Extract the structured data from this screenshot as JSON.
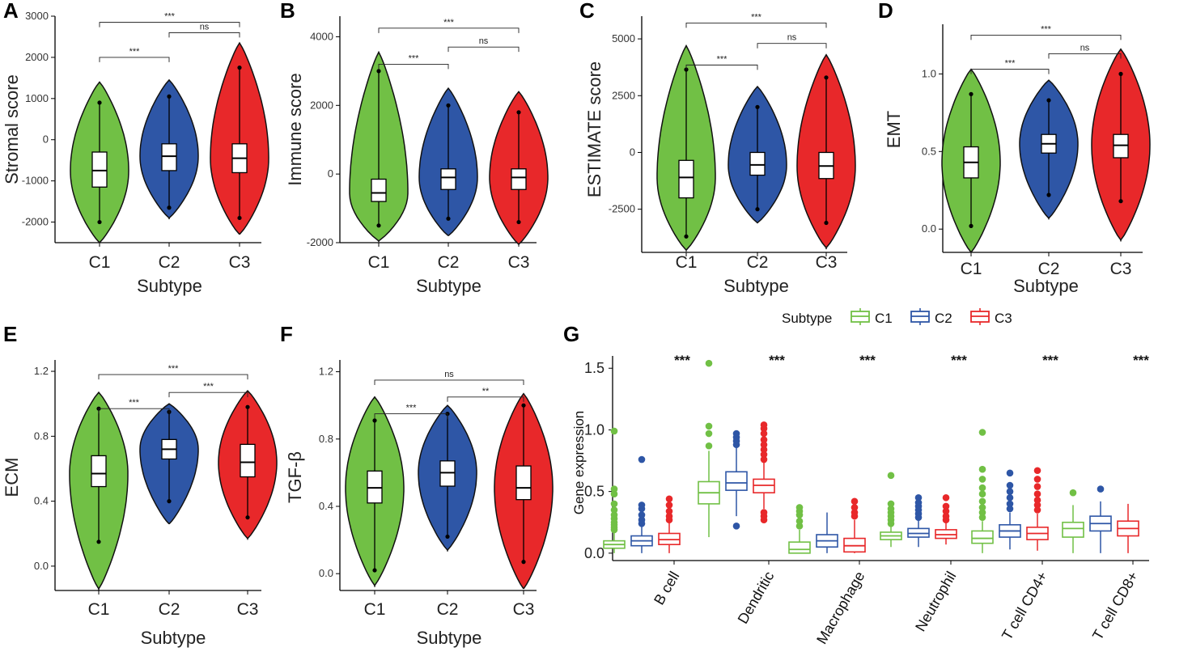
{
  "colors": {
    "C1": "#71c045",
    "C2": "#2e56a6",
    "C3": "#e8282a"
  },
  "chart_data": [
    {
      "panel": "A",
      "type": "violin",
      "ylabel": "Stromal score",
      "xlabel": "Subtype",
      "categories": [
        "C1",
        "C2",
        "C3"
      ],
      "ylim": [
        -2500,
        3000
      ],
      "yticks": [
        -2000,
        -1000,
        0,
        1000,
        2000,
        3000
      ],
      "ytick_labels": [
        "-2000",
        "-1000",
        "0",
        "1000",
        "2000",
        "3000"
      ],
      "violins": [
        {
          "min": -2500,
          "max": 1400,
          "q1": -1150,
          "median": -750,
          "q3": -300,
          "wlo": -2000,
          "whi": 900,
          "mode": -750
        },
        {
          "min": -1900,
          "max": 1450,
          "q1": -750,
          "median": -400,
          "q3": -100,
          "wlo": -1650,
          "whi": 1050,
          "mode": -400
        },
        {
          "min": -2300,
          "max": 2350,
          "q1": -800,
          "median": -450,
          "q3": -100,
          "wlo": -1900,
          "whi": 1750,
          "mode": -450
        }
      ],
      "comparisons": [
        {
          "from": 0,
          "to": 1,
          "y": 2000,
          "label": "***"
        },
        {
          "from": 1,
          "to": 2,
          "y": 2600,
          "label": "ns"
        },
        {
          "from": 0,
          "to": 2,
          "y": 2850,
          "label": "***"
        }
      ]
    },
    {
      "panel": "B",
      "type": "violin",
      "ylabel": "Immune score",
      "xlabel": "Subtype",
      "categories": [
        "C1",
        "C2",
        "C3"
      ],
      "ylim": [
        -2000,
        4600
      ],
      "yticks": [
        -2000,
        0,
        2000,
        4000
      ],
      "ytick_labels": [
        "-2000",
        "0",
        "2000",
        "4000"
      ],
      "violins": [
        {
          "min": -1950,
          "max": 3550,
          "q1": -800,
          "median": -550,
          "q3": -150,
          "wlo": -1500,
          "whi": 3000,
          "mode": -550
        },
        {
          "min": -1800,
          "max": 2500,
          "q1": -450,
          "median": -100,
          "q3": 150,
          "wlo": -1300,
          "whi": 2000,
          "mode": -100
        },
        {
          "min": -2050,
          "max": 2400,
          "q1": -450,
          "median": -100,
          "q3": 150,
          "wlo": -1400,
          "whi": 1800,
          "mode": -100
        }
      ],
      "comparisons": [
        {
          "from": 0,
          "to": 1,
          "y": 3200,
          "label": "***"
        },
        {
          "from": 1,
          "to": 2,
          "y": 3700,
          "label": "ns"
        },
        {
          "from": 0,
          "to": 2,
          "y": 4250,
          "label": "***"
        }
      ]
    },
    {
      "panel": "C",
      "type": "violin",
      "ylabel": "ESTIMATE score",
      "xlabel": "Subtype",
      "categories": [
        "C1",
        "C2",
        "C3"
      ],
      "ylim": [
        -4400,
        6000
      ],
      "yticks": [
        -2500,
        0,
        2500,
        5000
      ],
      "ytick_labels": [
        "-2500",
        "0",
        "2500",
        "5000"
      ],
      "violins": [
        {
          "min": -4300,
          "max": 4700,
          "q1": -2000,
          "median": -1100,
          "q3": -350,
          "wlo": -3700,
          "whi": 3650,
          "mode": -1100
        },
        {
          "min": -3100,
          "max": 2900,
          "q1": -1000,
          "median": -550,
          "q3": 0,
          "wlo": -2500,
          "whi": 2000,
          "mode": -550
        },
        {
          "min": -4200,
          "max": 4300,
          "q1": -1150,
          "median": -600,
          "q3": 0,
          "wlo": -3100,
          "whi": 3300,
          "mode": -600
        }
      ],
      "comparisons": [
        {
          "from": 0,
          "to": 1,
          "y": 3850,
          "label": "***"
        },
        {
          "from": 1,
          "to": 2,
          "y": 4800,
          "label": "ns"
        },
        {
          "from": 0,
          "to": 2,
          "y": 5700,
          "label": "***"
        }
      ]
    },
    {
      "panel": "D",
      "type": "violin",
      "ylabel": "EMT",
      "xlabel": "Subtype",
      "categories": [
        "C1",
        "C2",
        "C3"
      ],
      "ylim": [
        -0.15,
        1.32
      ],
      "yticks": [
        0.0,
        0.5,
        1.0
      ],
      "ytick_labels": [
        "0.0",
        "0.5",
        "1.0"
      ],
      "violins": [
        {
          "min": -0.15,
          "max": 1.03,
          "q1": 0.33,
          "median": 0.43,
          "q3": 0.53,
          "wlo": 0.02,
          "whi": 0.87,
          "mode": 0.43
        },
        {
          "min": 0.07,
          "max": 0.96,
          "q1": 0.49,
          "median": 0.55,
          "q3": 0.61,
          "wlo": 0.22,
          "whi": 0.83,
          "mode": 0.55
        },
        {
          "min": -0.07,
          "max": 1.16,
          "q1": 0.46,
          "median": 0.54,
          "q3": 0.61,
          "wlo": 0.18,
          "whi": 1.0,
          "mode": 0.54
        }
      ],
      "comparisons": [
        {
          "from": 0,
          "to": 1,
          "y": 1.03,
          "label": "***"
        },
        {
          "from": 1,
          "to": 2,
          "y": 1.13,
          "label": "ns"
        },
        {
          "from": 0,
          "to": 2,
          "y": 1.25,
          "label": "***"
        }
      ]
    },
    {
      "panel": "E",
      "type": "violin",
      "ylabel": "ECM",
      "xlabel": "Subtype",
      "categories": [
        "C1",
        "C2",
        "C3"
      ],
      "ylim": [
        -0.15,
        1.27
      ],
      "yticks": [
        0.0,
        0.4,
        0.8,
        1.2
      ],
      "ytick_labels": [
        "0.0",
        "0.4",
        "0.8",
        "1.2"
      ],
      "violins": [
        {
          "min": -0.14,
          "max": 1.07,
          "q1": 0.49,
          "median": 0.57,
          "q3": 0.68,
          "wlo": 0.15,
          "whi": 0.97,
          "mode": 0.57
        },
        {
          "min": 0.26,
          "max": 1.0,
          "q1": 0.66,
          "median": 0.72,
          "q3": 0.78,
          "wlo": 0.4,
          "whi": 0.95,
          "mode": 0.72
        },
        {
          "min": 0.17,
          "max": 1.08,
          "q1": 0.55,
          "median": 0.64,
          "q3": 0.75,
          "wlo": 0.3,
          "whi": 0.98,
          "mode": 0.64
        }
      ],
      "comparisons": [
        {
          "from": 0,
          "to": 1,
          "y": 0.97,
          "label": "***"
        },
        {
          "from": 1,
          "to": 2,
          "y": 1.07,
          "label": "***"
        },
        {
          "from": 0,
          "to": 2,
          "y": 1.18,
          "label": "***"
        }
      ]
    },
    {
      "panel": "F",
      "type": "violin",
      "ylabel": "TGF-β",
      "xlabel": "Subtype",
      "categories": [
        "C1",
        "C2",
        "C3"
      ],
      "ylim": [
        -0.1,
        1.27
      ],
      "yticks": [
        0.0,
        0.4,
        0.8,
        1.2
      ],
      "ytick_labels": [
        "0.0",
        "0.4",
        "0.8",
        "1.2"
      ],
      "violins": [
        {
          "min": -0.07,
          "max": 1.05,
          "q1": 0.42,
          "median": 0.51,
          "q3": 0.61,
          "wlo": 0.02,
          "whi": 0.91,
          "mode": 0.51
        },
        {
          "min": 0.14,
          "max": 1.0,
          "q1": 0.52,
          "median": 0.6,
          "q3": 0.67,
          "wlo": 0.22,
          "whi": 0.95,
          "mode": 0.6
        },
        {
          "min": -0.09,
          "max": 1.07,
          "q1": 0.44,
          "median": 0.51,
          "q3": 0.64,
          "wlo": 0.07,
          "whi": 1.0,
          "mode": 0.51
        }
      ],
      "comparisons": [
        {
          "from": 0,
          "to": 1,
          "y": 0.95,
          "label": "***"
        },
        {
          "from": 1,
          "to": 2,
          "y": 1.05,
          "label": "**"
        },
        {
          "from": 0,
          "to": 2,
          "y": 1.15,
          "label": "ns"
        }
      ]
    },
    {
      "panel": "G",
      "type": "box",
      "ylabel": "Gene expression",
      "legend_title": "Subtype",
      "legend": [
        "C1",
        "C2",
        "C3"
      ],
      "categories": [
        "B cell",
        "Dendritic",
        "Macrophage",
        "Neutrophil",
        "T cell CD4+",
        "T cell CD8+"
      ],
      "ylim": [
        -0.06,
        1.6
      ],
      "yticks": [
        0.0,
        0.5,
        1.0,
        1.5
      ],
      "ytick_labels": [
        "0.0",
        "0.5",
        "1.0",
        "1.5"
      ],
      "significance": [
        "***",
        "***",
        "***",
        "***",
        "***",
        "***"
      ],
      "boxes": [
        [
          {
            "q1": 0.04,
            "median": 0.07,
            "q3": 0.1,
            "wlo": 0.0,
            "whi": 0.17,
            "outliers": [
              0.19,
              0.21,
              0.23,
              0.25,
              0.28,
              0.31,
              0.35,
              0.4,
              0.48,
              0.52,
              0.99
            ]
          },
          {
            "q1": 0.06,
            "median": 0.1,
            "q3": 0.14,
            "wlo": 0.0,
            "whi": 0.22,
            "outliers": [
              0.24,
              0.27,
              0.31,
              0.36,
              0.39,
              0.76
            ]
          },
          {
            "q1": 0.07,
            "median": 0.11,
            "q3": 0.16,
            "wlo": 0.0,
            "whi": 0.25,
            "outliers": [
              0.27,
              0.3,
              0.34,
              0.39,
              0.44
            ]
          }
        ],
        [
          {
            "q1": 0.4,
            "median": 0.49,
            "q3": 0.58,
            "wlo": 0.13,
            "whi": 0.83,
            "outliers": [
              0.87,
              0.97,
              1.03,
              1.54
            ]
          },
          {
            "q1": 0.51,
            "median": 0.57,
            "q3": 0.66,
            "wlo": 0.3,
            "whi": 0.86,
            "outliers": [
              0.22,
              0.88,
              0.91,
              0.94,
              0.97
            ]
          },
          {
            "q1": 0.49,
            "median": 0.55,
            "q3": 0.6,
            "wlo": 0.36,
            "whi": 0.74,
            "outliers": [
              0.27,
              0.3,
              0.33,
              0.76,
              0.8,
              0.84,
              0.88,
              0.92,
              0.97,
              1.01,
              1.04
            ]
          }
        ],
        [
          {
            "q1": 0.0,
            "median": 0.03,
            "q3": 0.09,
            "wlo": 0.0,
            "whi": 0.19,
            "outliers": [
              0.22,
              0.26,
              0.31,
              0.34,
              0.37
            ]
          },
          {
            "q1": 0.05,
            "median": 0.1,
            "q3": 0.15,
            "wlo": 0.0,
            "whi": 0.33,
            "outliers": []
          },
          {
            "q1": 0.01,
            "median": 0.06,
            "q3": 0.12,
            "wlo": 0.0,
            "whi": 0.27,
            "outliers": [
              0.3,
              0.33,
              0.37,
              0.42
            ]
          }
        ],
        [
          {
            "q1": 0.11,
            "median": 0.14,
            "q3": 0.17,
            "wlo": 0.05,
            "whi": 0.22,
            "outliers": [
              0.24,
              0.27,
              0.3,
              0.33,
              0.36,
              0.4,
              0.63
            ]
          },
          {
            "q1": 0.13,
            "median": 0.16,
            "q3": 0.2,
            "wlo": 0.05,
            "whi": 0.27,
            "outliers": [
              0.29,
              0.32,
              0.35,
              0.38,
              0.41,
              0.45
            ]
          },
          {
            "q1": 0.12,
            "median": 0.15,
            "q3": 0.19,
            "wlo": 0.07,
            "whi": 0.25,
            "outliers": [
              0.27,
              0.3,
              0.34,
              0.38,
              0.45
            ]
          }
        ],
        [
          {
            "q1": 0.08,
            "median": 0.12,
            "q3": 0.18,
            "wlo": 0.0,
            "whi": 0.26,
            "outliers": [
              0.29,
              0.33,
              0.37,
              0.42,
              0.48,
              0.53,
              0.6,
              0.68,
              0.98
            ]
          },
          {
            "q1": 0.13,
            "median": 0.18,
            "q3": 0.23,
            "wlo": 0.03,
            "whi": 0.33,
            "outliers": [
              0.36,
              0.4,
              0.45,
              0.5,
              0.55,
              0.65
            ]
          },
          {
            "q1": 0.11,
            "median": 0.16,
            "q3": 0.21,
            "wlo": 0.02,
            "whi": 0.32,
            "outliers": [
              0.35,
              0.39,
              0.43,
              0.48,
              0.54,
              0.6,
              0.67
            ]
          }
        ],
        [
          {
            "q1": 0.13,
            "median": 0.2,
            "q3": 0.25,
            "wlo": 0.0,
            "whi": 0.39,
            "outliers": [
              0.49
            ]
          },
          {
            "q1": 0.18,
            "median": 0.24,
            "q3": 0.3,
            "wlo": 0.0,
            "whi": 0.42,
            "outliers": [
              0.52
            ]
          },
          {
            "q1": 0.14,
            "median": 0.2,
            "q3": 0.26,
            "wlo": 0.0,
            "whi": 0.4,
            "outliers": []
          }
        ]
      ]
    }
  ]
}
